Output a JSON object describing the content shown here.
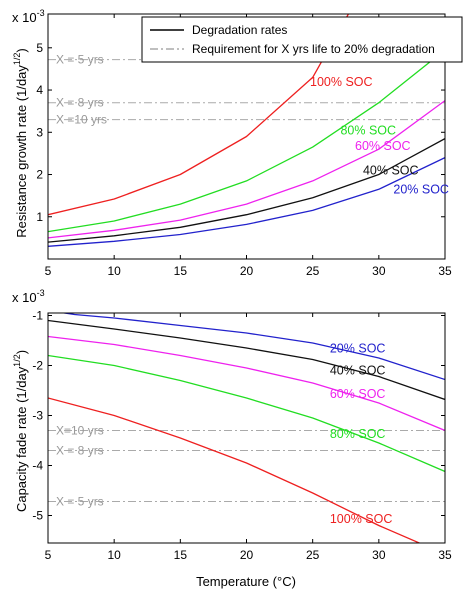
{
  "colors": {
    "soc100": "#ee2020",
    "soc80": "#22dd22",
    "soc60": "#ee22ee",
    "soc40": "#111111",
    "soc20": "#2222cc",
    "requirement": "#aaaaaa",
    "requirement_label": "#999999"
  },
  "legend": {
    "items": [
      {
        "label": "Degradation rates",
        "style": "solid"
      },
      {
        "label": "Requirement for X yrs life to 20% degradation",
        "style": "dashdot"
      }
    ]
  },
  "chart_data": [
    {
      "type": "line",
      "ylabel": "Resistance growth rate (1/day",
      "ylabel_exp": "1/2",
      "ylabel_close": ")",
      "xlim": [
        5,
        35
      ],
      "ylim": [
        0.0002,
        5.8
      ],
      "xticks": [
        "5",
        "10",
        "15",
        "20",
        "25",
        "30",
        "35"
      ],
      "yticks": [
        "1",
        "2",
        "3",
        "4",
        "5"
      ],
      "scale_multiplier": "x 10",
      "scale_exp": "-3",
      "grid": false,
      "legend_position": "top-right",
      "series": [
        {
          "name": "100% SOC",
          "color_key": "soc100",
          "x": [
            5,
            10,
            15,
            20,
            25,
            27.7
          ],
          "y": [
            1.05,
            1.42,
            2.0,
            2.9,
            4.3,
            5.8
          ]
        },
        {
          "name": "80% SOC",
          "color_key": "soc80",
          "x": [
            5,
            10,
            15,
            20,
            25,
            30,
            35
          ],
          "y": [
            0.65,
            0.9,
            1.3,
            1.85,
            2.65,
            3.7,
            4.95
          ]
        },
        {
          "name": "60% SOC",
          "color_key": "soc60",
          "x": [
            5,
            10,
            15,
            20,
            25,
            30,
            35
          ],
          "y": [
            0.5,
            0.68,
            0.92,
            1.3,
            1.85,
            2.6,
            3.75
          ]
        },
        {
          "name": "40% SOC",
          "color_key": "soc40",
          "x": [
            5,
            10,
            15,
            20,
            25,
            30,
            35
          ],
          "y": [
            0.4,
            0.55,
            0.75,
            1.05,
            1.45,
            2.0,
            2.85
          ]
        },
        {
          "name": "20% SOC",
          "color_key": "soc20",
          "x": [
            5,
            10,
            15,
            20,
            25,
            30,
            35
          ],
          "y": [
            0.3,
            0.42,
            0.58,
            0.82,
            1.15,
            1.65,
            2.4
          ]
        }
      ],
      "requirements": [
        {
          "label": "X = 5 yrs",
          "y": 4.72
        },
        {
          "label": "X = 8 yrs",
          "y": 3.7
        },
        {
          "label": "X =10 yrs",
          "y": 3.3
        }
      ],
      "annotations": [
        {
          "text": "100% SOC",
          "color_key": "soc100",
          "x": 24.8,
          "y": 4.1
        },
        {
          "text": "80% SOC",
          "color_key": "soc80",
          "x": 27.1,
          "y": 2.95
        },
        {
          "text": "60% SOC",
          "color_key": "soc60",
          "x": 28.2,
          "y": 2.58
        },
        {
          "text": "40% SOC",
          "color_key": "soc40",
          "x": 28.8,
          "y": 2.0
        },
        {
          "text": "20% SOC",
          "color_key": "soc20",
          "x": 31.1,
          "y": 1.55
        }
      ]
    },
    {
      "type": "line",
      "ylabel": "Capacity fade rate (1/day",
      "ylabel_exp": "1/2",
      "ylabel_close": ")",
      "xlabel": "Temperature (°C)",
      "xlim": [
        5,
        35
      ],
      "ylim": [
        -5.55,
        -0.95
      ],
      "xticks": [
        "5",
        "10",
        "15",
        "20",
        "25",
        "30",
        "35"
      ],
      "yticks": [
        "-1",
        "-2",
        "-3",
        "-4",
        "-5"
      ],
      "scale_multiplier": "x 10",
      "scale_exp": "-3",
      "grid": false,
      "series": [
        {
          "name": "20% SOC",
          "color_key": "soc20",
          "x": [
            5,
            7,
            10,
            15,
            20,
            25,
            30,
            35
          ],
          "y": [
            -0.9,
            -0.98,
            -1.05,
            -1.2,
            -1.35,
            -1.55,
            -1.85,
            -2.28
          ]
        },
        {
          "name": "40% SOC",
          "color_key": "soc40",
          "x": [
            5,
            10,
            15,
            20,
            25,
            30,
            35
          ],
          "y": [
            -1.1,
            -1.27,
            -1.45,
            -1.65,
            -1.88,
            -2.22,
            -2.68
          ]
        },
        {
          "name": "60% SOC",
          "color_key": "soc60",
          "x": [
            5,
            10,
            15,
            20,
            25,
            30,
            35
          ],
          "y": [
            -1.42,
            -1.58,
            -1.8,
            -2.05,
            -2.35,
            -2.75,
            -3.3
          ]
        },
        {
          "name": "80% SOC",
          "color_key": "soc80",
          "x": [
            5,
            10,
            15,
            20,
            25,
            30,
            35
          ],
          "y": [
            -1.8,
            -2.0,
            -2.3,
            -2.65,
            -3.05,
            -3.55,
            -4.12
          ]
        },
        {
          "name": "100% SOC",
          "color_key": "soc100",
          "x": [
            5,
            10,
            15,
            20,
            25,
            30,
            33.5
          ],
          "y": [
            -2.65,
            -3.0,
            -3.45,
            -3.95,
            -4.55,
            -5.2,
            -5.6
          ]
        }
      ],
      "requirements": [
        {
          "label": "X=10 yrs",
          "y": -3.3
        },
        {
          "label": "X = 8 yrs",
          "y": -3.7
        },
        {
          "label": "X = 5 yrs",
          "y": -4.72
        }
      ],
      "annotations": [
        {
          "text": "20% SOC",
          "color_key": "soc20",
          "x": 26.3,
          "y": -1.74
        },
        {
          "text": "40% SOC",
          "color_key": "soc40",
          "x": 26.3,
          "y": -2.18
        },
        {
          "text": "60% SOC",
          "color_key": "soc60",
          "x": 26.3,
          "y": -2.65
        },
        {
          "text": "80% SOC",
          "color_key": "soc80",
          "x": 26.3,
          "y": -3.45
        },
        {
          "text": "100% SOC",
          "color_key": "soc100",
          "x": 26.3,
          "y": -5.15
        }
      ]
    }
  ]
}
